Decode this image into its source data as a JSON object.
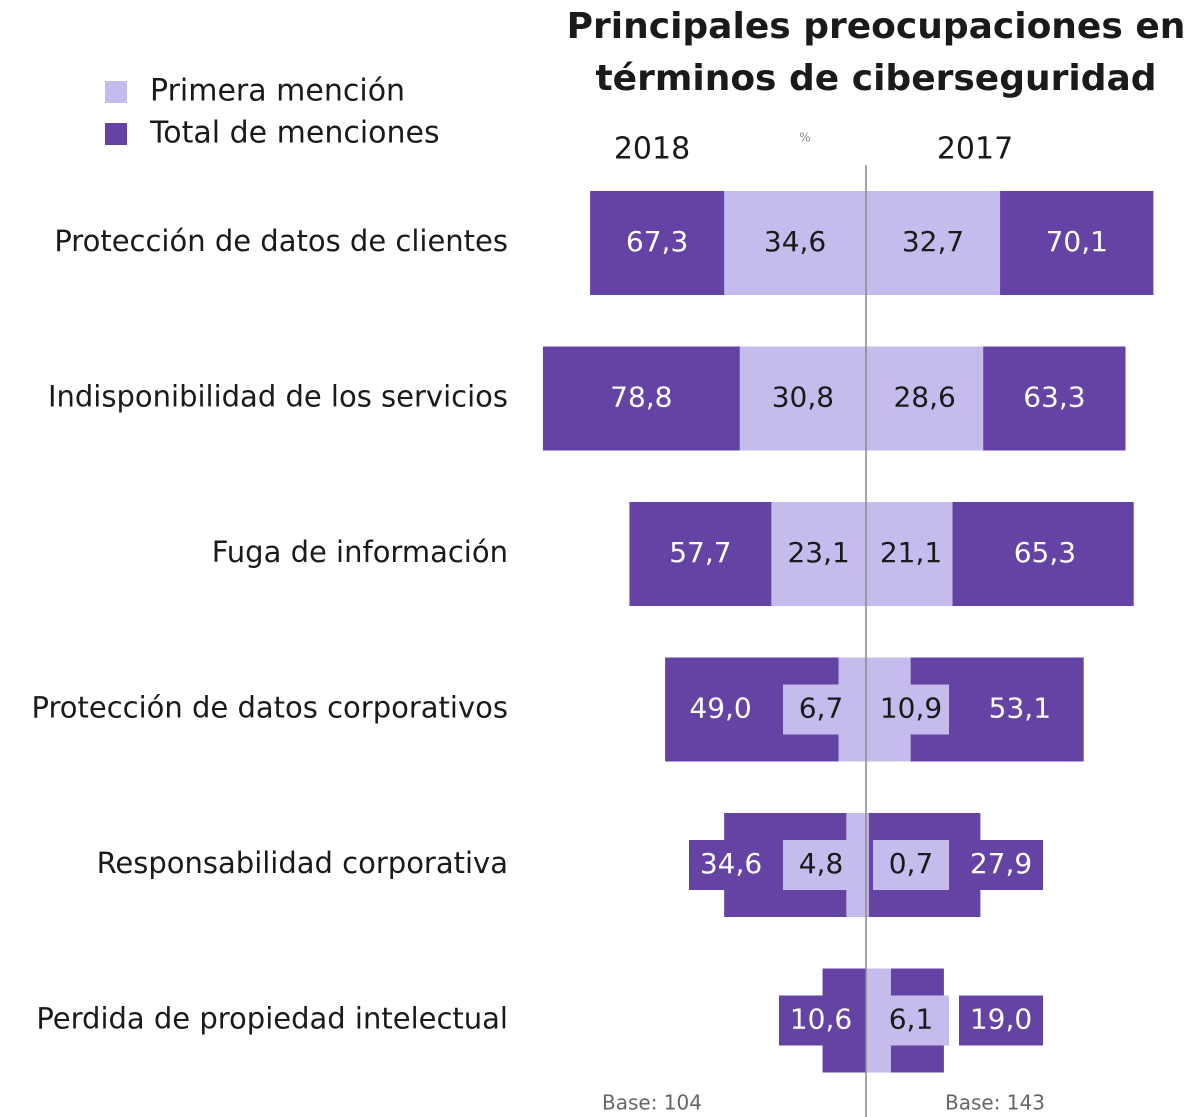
{
  "chart_data": {
    "type": "butterfly",
    "title": [
      "Principales preocupaciones en",
      "términos de ciberseguridad"
    ],
    "unit": "%",
    "categories": [
      "Protección de datos de clientes",
      "Indisponibilidad de los servicios",
      "Fuga de información",
      "Protección de datos corporativos",
      "Responsabilidad corporativa",
      "Perdida de propiedad intelectual"
    ],
    "series": [
      {
        "name": "Primera mención",
        "group": "2018",
        "side": "left",
        "color": "#c6bbed",
        "values": [
          34.6,
          30.8,
          23.1,
          6.7,
          4.8,
          null
        ],
        "value_labels": [
          "34,6",
          "30,8",
          "23,1",
          "6,7",
          "4,8",
          null
        ]
      },
      {
        "name": "Total de menciones",
        "group": "2018",
        "side": "left",
        "color": "#6543a4",
        "values": [
          67.3,
          78.8,
          57.7,
          49.0,
          34.6,
          10.6
        ],
        "value_labels": [
          "67,3",
          "78,8",
          "57,7",
          "49,0",
          "34,6",
          "10,6"
        ]
      },
      {
        "name": "Primera mención",
        "group": "2017",
        "side": "right",
        "color": "#c6bbed",
        "values": [
          32.7,
          28.6,
          21.1,
          10.9,
          0.7,
          6.1
        ],
        "value_labels": [
          "32,7",
          "28,6",
          "21,1",
          "10,9",
          "0,7",
          "6,1"
        ]
      },
      {
        "name": "Total de menciones",
        "group": "2017",
        "side": "right",
        "color": "#6543a4",
        "values": [
          70.1,
          63.3,
          65.3,
          53.1,
          27.9,
          19.0
        ],
        "value_labels": [
          "70,1",
          "63,3",
          "65,3",
          "53,1",
          "27,9",
          "19,0"
        ]
      }
    ],
    "bases": [
      "Base: 104",
      "Base: 143"
    ]
  }
}
